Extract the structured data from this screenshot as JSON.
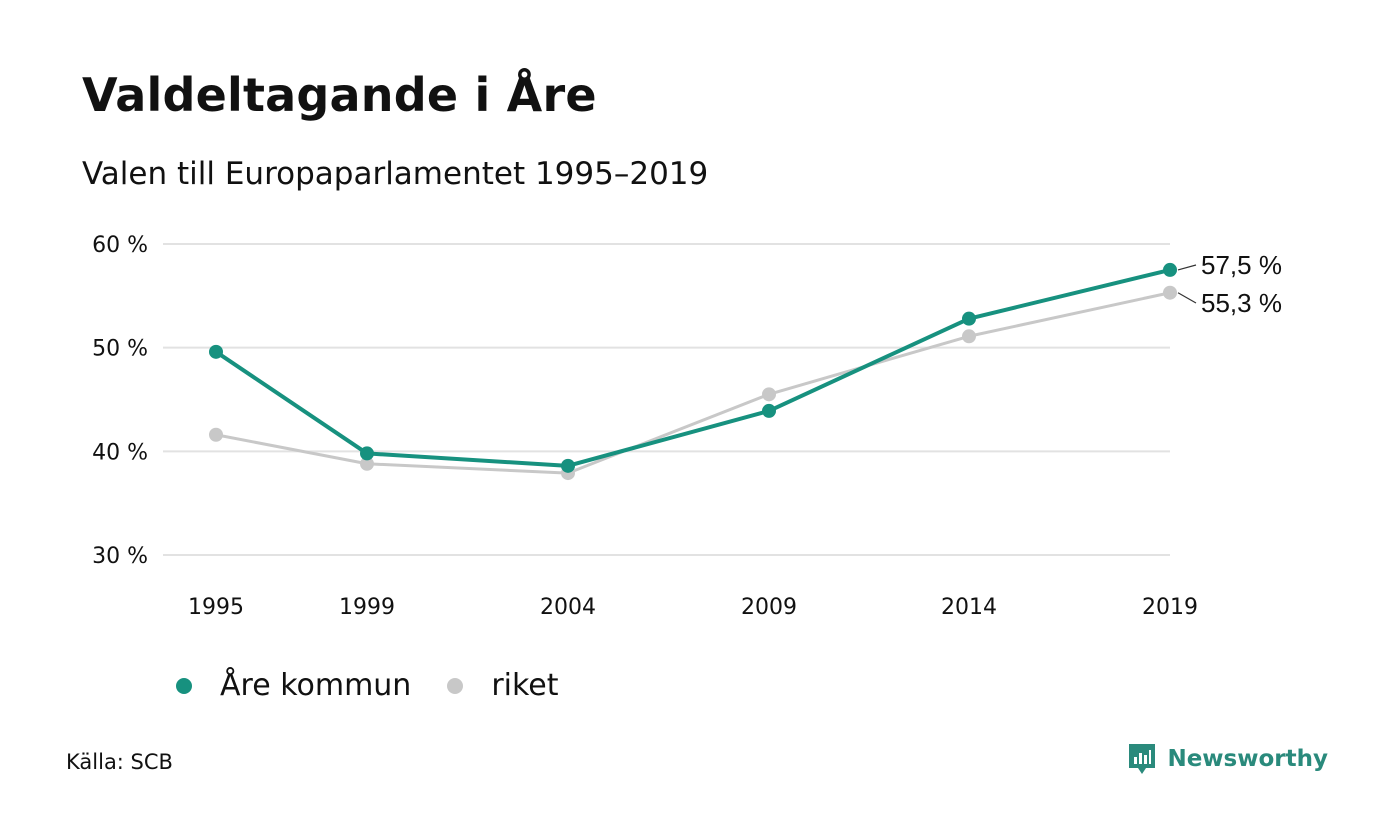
{
  "chart_data": {
    "type": "line",
    "title": "Valdeltagande i Åre",
    "subtitle": "Valen till Europaparlamentet 1995–2019",
    "x": [
      "1995",
      "1999",
      "2004",
      "2009",
      "2014",
      "2019"
    ],
    "series": [
      {
        "name": "Åre kommun",
        "color": "#17917f",
        "values": [
          49.6,
          39.8,
          38.6,
          43.9,
          52.8,
          57.5
        ]
      },
      {
        "name": "riket",
        "color": "#c8c8c8",
        "values": [
          41.6,
          38.8,
          37.9,
          45.5,
          51.1,
          55.3
        ]
      }
    ],
    "ylim": [
      30,
      60
    ],
    "yticks": [
      30,
      40,
      50,
      60
    ],
    "ytick_labels": [
      "30 %",
      "40 %",
      "50 %",
      "60 %"
    ],
    "end_labels": [
      "57,5 %",
      "55,3 %"
    ],
    "grid": true,
    "legend_position": "bottom-left"
  },
  "source": "Källa: SCB",
  "brand": {
    "name": "Newsworthy",
    "color": "#2a8a7c",
    "icon": "bar-chart-badge-icon"
  }
}
